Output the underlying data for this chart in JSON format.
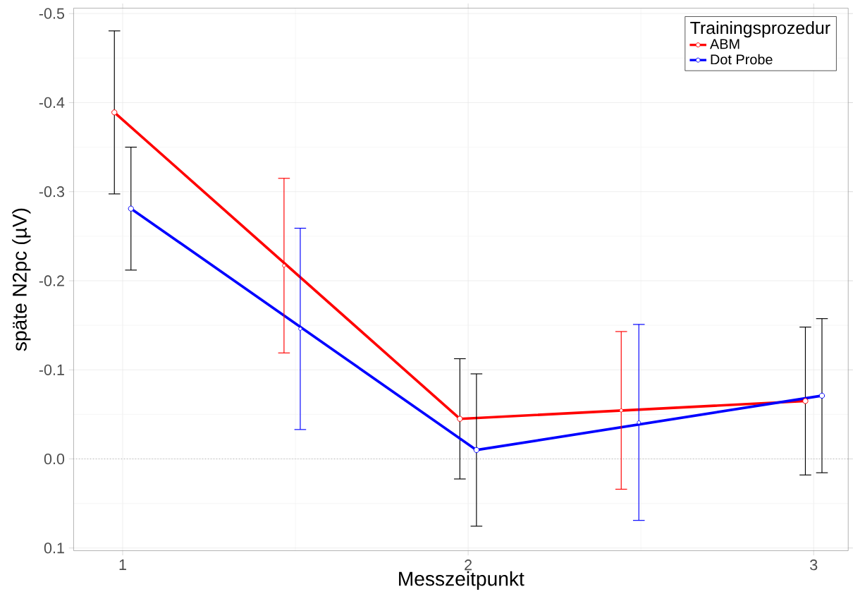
{
  "chart_data": {
    "type": "line",
    "xlabel": "Messzeitpunkt",
    "ylabel": "späte N2pc (µV)",
    "legend_title": "Trainingsprozedur",
    "legend": "top right",
    "grid": true,
    "marker": "circle",
    "line_style": "solid",
    "xlim": [
      0.858,
      3.1
    ],
    "xticks": [
      1,
      2,
      3
    ],
    "ylim": [
      0.103,
      -0.506
    ],
    "yticks": [
      {
        "value": -0.5,
        "label": "-0.5"
      },
      {
        "value": -0.4,
        "label": "-0.4"
      },
      {
        "value": -0.3,
        "label": "-0.3"
      },
      {
        "value": -0.2,
        "label": "-0.2"
      },
      {
        "value": -0.1,
        "label": "-0.1"
      },
      {
        "value": 0,
        "label": "0.0"
      },
      {
        "value": 0.1,
        "label": "0.1"
      }
    ],
    "ref_lines": [
      {
        "axis": "y",
        "value": 0,
        "color": "#555555",
        "line_style": "dotted"
      }
    ],
    "series": [
      {
        "name": "ABM",
        "color": "#ff0000",
        "x": [
          0.976,
          1.976,
          2.976
        ],
        "values": [
          -0.389,
          -0.045,
          -0.065
        ],
        "errors": [
          0.0915,
          0.0675,
          0.083
        ]
      },
      {
        "name": "Dot Probe",
        "color": "#0000ff",
        "x": [
          1.024,
          2.024,
          3.024
        ],
        "values": [
          -0.281,
          -0.01,
          -0.071
        ],
        "errors": [
          0.069,
          0.0855,
          0.0865
        ]
      },
      {
        "type": "scatter",
        "marker": "none",
        "color": "#ff0000",
        "x": [
          1.467,
          2.443
        ],
        "values": [
          -0.217,
          -0.0545
        ],
        "errors": [
          0.098,
          0.0885
        ]
      },
      {
        "type": "scatter",
        "marker": "none",
        "color": "#0000ff",
        "x": [
          1.514,
          2.494
        ],
        "values": [
          -0.146,
          -0.041
        ],
        "errors": [
          0.113,
          0.11
        ]
      }
    ]
  }
}
